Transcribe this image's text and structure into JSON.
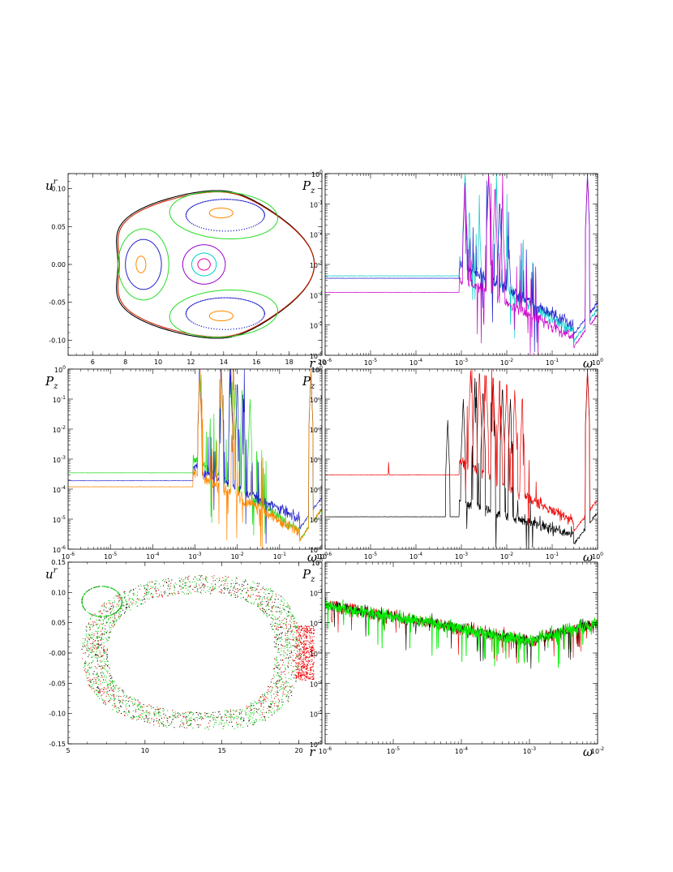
{
  "chart_data": [
    {
      "panel": "top-left",
      "type": "scatter",
      "xlabel": "r",
      "ylabel_base": "u",
      "ylabel_sup": "r",
      "xlim": [
        4.5,
        20
      ],
      "ylim": [
        -0.12,
        0.12
      ],
      "xticks": [
        6,
        8,
        10,
        12,
        14,
        16,
        18,
        20
      ],
      "xtick_labels": [
        "6",
        "8",
        "10",
        "12",
        "14",
        "16",
        "18",
        "20"
      ],
      "yticks": [
        -0.1,
        -0.05,
        0.0,
        0.05,
        0.1
      ],
      "ytick_labels": [
        "-0.10",
        "-0.05",
        "0.00",
        "0.05",
        "0.10"
      ],
      "curves": [
        {
          "color": "#000000",
          "kind": "outer",
          "x0": 12.7,
          "y0": 0.0,
          "rx": 6.0,
          "ry": 0.112,
          "tri": 0.14,
          "rot": 0
        },
        {
          "color": "#cc2200",
          "kind": "outer",
          "x0": 12.75,
          "y0": 0.0,
          "rx": 5.95,
          "ry": 0.11,
          "tri": 0.14,
          "rot": 0
        },
        {
          "color": "#9900cc",
          "kind": "ellipse",
          "x0": 12.8,
          "y0": 0.0,
          "rx": 1.3,
          "ry": 0.026
        },
        {
          "color": "#00cccc",
          "kind": "ellipse",
          "x0": 12.8,
          "y0": 0.0,
          "rx": 0.75,
          "ry": 0.015
        },
        {
          "color": "#ee00aa",
          "kind": "ellipse",
          "x0": 12.8,
          "y0": 0.0,
          "rx": 0.38,
          "ry": 0.0075
        },
        {
          "color": "#22dd22",
          "kind": "ellipse",
          "x0": 9.1,
          "y0": 0.0,
          "rx": 1.55,
          "ry": 0.047
        },
        {
          "color": "#2222cc",
          "kind": "ellipse",
          "x0": 9.1,
          "y0": 0.0,
          "rx": 1.1,
          "ry": 0.033
        },
        {
          "color": "#ff8800",
          "kind": "ellipse",
          "x0": 8.95,
          "y0": 0.0,
          "rx": 0.3,
          "ry": 0.011
        },
        {
          "color": "#22dd22",
          "kind": "ellipse",
          "x0": 14.0,
          "y0": 0.065,
          "rx": 3.3,
          "ry": 0.031,
          "rot": -0.004
        },
        {
          "color": "#2222cc",
          "kind": "dotted",
          "x0": 14.1,
          "y0": 0.065,
          "rx": 2.4,
          "ry": 0.021
        },
        {
          "color": "#ff8800",
          "kind": "ellipse",
          "x0": 13.85,
          "y0": 0.068,
          "rx": 0.72,
          "ry": 0.0065
        },
        {
          "color": "#22dd22",
          "kind": "ellipse",
          "x0": 14.0,
          "y0": -0.065,
          "rx": 3.3,
          "ry": 0.031,
          "rot": 0.004
        },
        {
          "color": "#2222cc",
          "kind": "dotted",
          "x0": 14.1,
          "y0": -0.065,
          "rx": 2.4,
          "ry": 0.021
        },
        {
          "color": "#ff8800",
          "kind": "ellipse",
          "x0": 13.85,
          "y0": -0.068,
          "rx": 0.72,
          "ry": 0.0065
        }
      ]
    },
    {
      "panel": "top-right",
      "type": "line",
      "xscale": "log",
      "yscale": "log",
      "xlabel": "ω",
      "ylabel_base": "P",
      "ylabel_sub": "z",
      "xlim": [
        1e-06,
        1
      ],
      "ylim": [
        1e-06,
        1
      ],
      "series": [
        {
          "color": "#00cccc",
          "plateau": 0.00042,
          "seed": 11,
          "mid": 0.00012,
          "dip": 3e-06,
          "peaks": [
            [
              0.0012,
              0.7
            ],
            [
              0.004,
              0.9
            ],
            [
              0.0015,
              0.05
            ],
            [
              0.0025,
              0.03
            ],
            [
              0.006,
              0.2
            ],
            [
              0.01,
              0.005
            ],
            [
              0.6,
              1.0
            ]
          ]
        },
        {
          "color": "#2222cc",
          "plateau": 0.00035,
          "seed": 23,
          "mid": 0.0001,
          "dip": 5e-06,
          "peaks": [
            [
              0.0012,
              0.5
            ],
            [
              0.004,
              0.8
            ],
            [
              0.007,
              0.1
            ],
            [
              0.011,
              0.01
            ],
            [
              0.6,
              0.8
            ]
          ]
        },
        {
          "color": "#cc00cc",
          "plateau": 0.00012,
          "seed": 37,
          "mid": 9e-05,
          "dip": 2e-06,
          "peaks": [
            [
              0.0012,
              0.4
            ],
            [
              0.004,
              0.95
            ],
            [
              0.0055,
              0.3
            ],
            [
              0.008,
              0.08
            ],
            [
              0.6,
              1.0
            ]
          ]
        }
      ]
    },
    {
      "panel": "middle-left",
      "type": "line",
      "xscale": "log",
      "yscale": "log",
      "xlabel": "ω",
      "ylabel_base": "P",
      "ylabel_sub": "z",
      "xlim": [
        1e-06,
        1
      ],
      "ylim": [
        1e-06,
        1
      ],
      "series": [
        {
          "color": "#22dd22",
          "plateau": 0.00035,
          "seed": 51,
          "mid": 3e-05,
          "dip": 2e-06,
          "peaks": [
            [
              0.0013,
              0.7
            ],
            [
              0.0042,
              0.6
            ],
            [
              0.007,
              0.4
            ],
            [
              0.009,
              0.3
            ],
            [
              0.013,
              0.2
            ],
            [
              0.02,
              0.1
            ],
            [
              0.55,
              0.9
            ]
          ]
        },
        {
          "color": "#2222cc",
          "plateau": 0.00019,
          "seed": 63,
          "mid": 3e-05,
          "dip": 5e-06,
          "peaks": [
            [
              0.0013,
              0.8
            ],
            [
              0.0042,
              1.0
            ],
            [
              0.007,
              0.5
            ],
            [
              0.01,
              0.3
            ],
            [
              0.014,
              0.1
            ],
            [
              0.55,
              0.95
            ]
          ]
        },
        {
          "color": "#ff8800",
          "plateau": 0.00012,
          "seed": 77,
          "mid": 2e-05,
          "dip": 2e-06,
          "peaks": [
            [
              0.0013,
              0.5
            ],
            [
              0.0042,
              0.9
            ],
            [
              0.008,
              0.2
            ],
            [
              0.55,
              1.0
            ]
          ]
        }
      ]
    },
    {
      "panel": "middle-right",
      "type": "line",
      "xscale": "log",
      "yscale": "log",
      "xlabel": "ω",
      "ylabel_base": "P",
      "ylabel_sub": "z",
      "xlim": [
        1e-06,
        1
      ],
      "ylim": [
        1e-06,
        1
      ],
      "series": [
        {
          "color": "#000000",
          "plateau": 1.2e-05,
          "seed": 91,
          "mid": 2e-06,
          "dip": 1.5e-06,
          "peaks": [
            [
              0.0005,
              0.02
            ],
            [
              0.0011,
              0.1
            ],
            [
              0.002,
              0.5
            ],
            [
              0.003,
              0.15
            ],
            [
              0.005,
              0.3
            ],
            [
              0.008,
              0.2
            ],
            [
              0.012,
              0.1
            ],
            [
              0.6,
              0.8
            ]
          ]
        },
        {
          "color": "#ee0000",
          "plateau": 0.0003,
          "seed": 97,
          "mid": 3e-06,
          "dip": 4e-06,
          "peaks": [
            [
              2.5e-05,
              0.0008
            ],
            [
              0.0016,
              0.9
            ],
            [
              0.0025,
              0.7
            ],
            [
              0.0035,
              0.6
            ],
            [
              0.005,
              0.5
            ],
            [
              0.007,
              0.4
            ],
            [
              0.01,
              0.3
            ],
            [
              0.015,
              0.2
            ],
            [
              0.022,
              0.1
            ],
            [
              0.6,
              1.0
            ]
          ]
        }
      ]
    },
    {
      "panel": "bottom-left",
      "type": "scatter",
      "xlabel": "r",
      "ylabel_base": "u",
      "ylabel_sup": "r",
      "xlim": [
        5,
        21.5
      ],
      "ylim": [
        -0.15,
        0.15
      ],
      "xticks": [
        5,
        10,
        15,
        20
      ],
      "xtick_labels": [
        "5",
        "10",
        "15",
        "20"
      ],
      "yticks": [
        -0.15,
        -0.1,
        -0.05,
        0.0,
        0.05,
        0.1,
        0.15
      ],
      "ytick_labels": [
        "-0.15",
        "-0.10",
        "-0.05",
        "-0.00",
        "0.05",
        "0.10",
        "0.15"
      ],
      "series": [
        {
          "name": "",
          "color": "#ee0000",
          "seed": 5
        },
        {
          "name": "",
          "color": "#000000",
          "seed": 7
        },
        {
          "name": "",
          "color": "#11cc11",
          "seed": 9
        }
      ]
    },
    {
      "panel": "bottom-right",
      "type": "line",
      "xscale": "log",
      "yscale": "log",
      "xlabel": "ω",
      "ylabel_base": "P",
      "ylabel_sub": "z",
      "xlim": [
        1e-06,
        0.01
      ],
      "ylim": [
        1e-06,
        1
      ],
      "series": [
        {
          "color": "#ee0000",
          "seed": 201
        },
        {
          "color": "#000000",
          "seed": 211
        },
        {
          "color": "#00ee00",
          "seed": 223
        }
      ]
    }
  ]
}
